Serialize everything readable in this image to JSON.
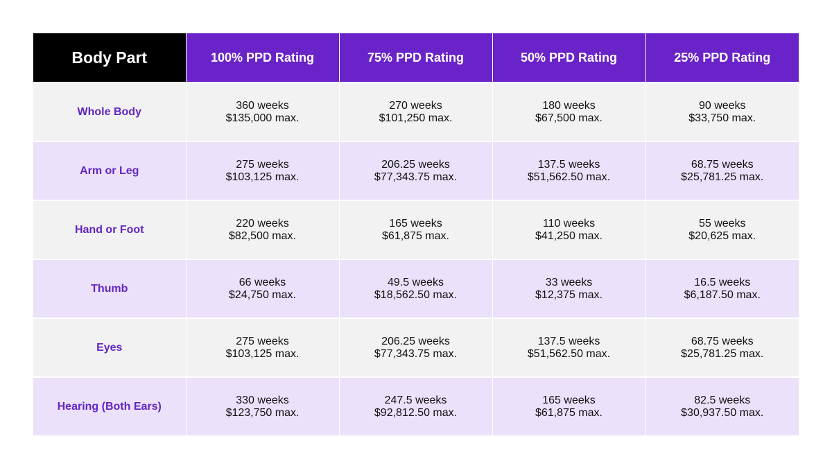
{
  "headers": [
    "Body Part",
    "100% PPD Rating",
    "75% PPD Rating",
    "50% PPD Rating",
    "25% PPD Rating"
  ],
  "rows": [
    {
      "part": "Whole Body",
      "cells": [
        {
          "weeks": "360 weeks",
          "max": "$135,000 max."
        },
        {
          "weeks": "270 weeks",
          "max": "$101,250 max."
        },
        {
          "weeks": "180 weeks",
          "max": "$67,500 max."
        },
        {
          "weeks": "90 weeks",
          "max": "$33,750 max."
        }
      ]
    },
    {
      "part": "Arm or Leg",
      "cells": [
        {
          "weeks": "275 weeks",
          "max": "$103,125 max."
        },
        {
          "weeks": "206.25 weeks",
          "max": "$77,343.75 max."
        },
        {
          "weeks": "137.5 weeks",
          "max": "$51,562.50 max."
        },
        {
          "weeks": "68.75 weeks",
          "max": "$25,781.25 max."
        }
      ]
    },
    {
      "part": "Hand or Foot",
      "cells": [
        {
          "weeks": "220 weeks",
          "max": "$82,500 max."
        },
        {
          "weeks": "165 weeks",
          "max": "$61,875 max."
        },
        {
          "weeks": "110 weeks",
          "max": "$41,250 max."
        },
        {
          "weeks": "55 weeks",
          "max": "$20,625 max."
        }
      ]
    },
    {
      "part": "Thumb",
      "cells": [
        {
          "weeks": "66 weeks",
          "max": "$24,750 max."
        },
        {
          "weeks": "49.5 weeks",
          "max": "$18,562.50 max."
        },
        {
          "weeks": "33 weeks",
          "max": "$12,375 max."
        },
        {
          "weeks": "16.5 weeks",
          "max": "$6,187.50 max."
        }
      ]
    },
    {
      "part": "Eyes",
      "cells": [
        {
          "weeks": "275 weeks",
          "max": "$103,125 max."
        },
        {
          "weeks": "206.25 weeks",
          "max": "$77,343.75 max."
        },
        {
          "weeks": "137.5 weeks",
          "max": "$51,562.50 max."
        },
        {
          "weeks": "68.75 weeks",
          "max": "$25,781.25 max."
        }
      ]
    },
    {
      "part": "Hearing (Both Ears)",
      "cells": [
        {
          "weeks": "330 weeks",
          "max": "$123,750 max."
        },
        {
          "weeks": "247.5 weeks",
          "max": "$92,812.50 max."
        },
        {
          "weeks": "165 weeks",
          "max": "$61,875 max."
        },
        {
          "weeks": "82.5 weeks",
          "max": "$30,937.50 max."
        }
      ]
    }
  ],
  "colors": {
    "header_first_bg": "#000000",
    "header_bg": "#6a23c8",
    "body_part_text": "#6326c2",
    "row_light": "#f2f2f2",
    "row_lavender": "#ebe1fa"
  }
}
